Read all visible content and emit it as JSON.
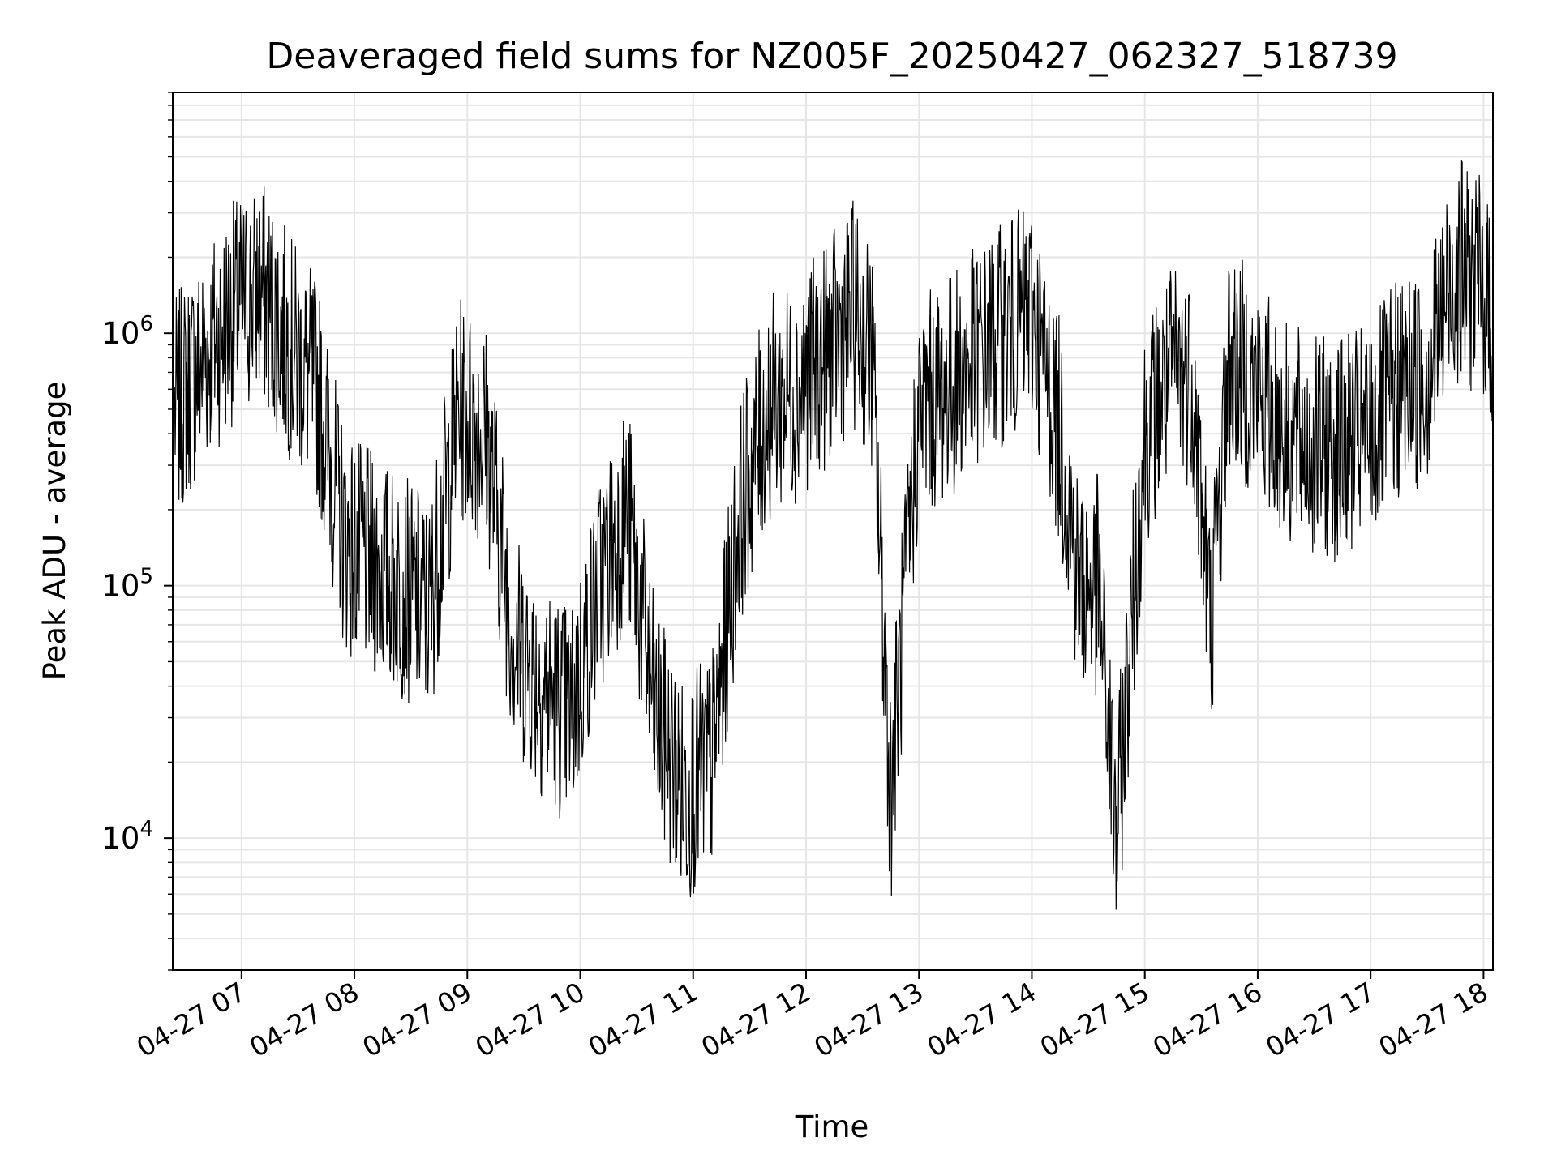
{
  "chart_data": {
    "type": "line",
    "title": "Deaveraged field sums for NZ005F_20250427_062327_518739",
    "xlabel": "Time",
    "ylabel": "Peak ADU - average",
    "x_axis": {
      "type": "time",
      "range": [
        "04-27 06:23:27",
        "04-27 18:05"
      ],
      "ticks": [
        "04-27 07",
        "04-27 08",
        "04-27 09",
        "04-27 10",
        "04-27 11",
        "04-27 12",
        "04-27 13",
        "04-27 14",
        "04-27 15",
        "04-27 16",
        "04-27 17",
        "04-27 18"
      ],
      "tick_times": [
        "07:00",
        "08:00",
        "09:00",
        "10:00",
        "11:00",
        "12:00",
        "13:00",
        "14:00",
        "15:00",
        "16:00",
        "17:00",
        "18:00"
      ]
    },
    "y_axis": {
      "scale": "log",
      "range": [
        3000,
        9000000
      ],
      "ticks": [
        10000,
        100000,
        1000000
      ],
      "tick_labels": [
        {
          "base": "10",
          "exp": "4"
        },
        {
          "base": "10",
          "exp": "5"
        },
        {
          "base": "10",
          "exp": "6"
        }
      ]
    },
    "grid": true,
    "series": [
      {
        "color": "#000000",
        "x": [
          "06:25",
          "06:40",
          "06:55",
          "07:10",
          "07:25",
          "07:40",
          "07:55",
          "08:10",
          "08:25",
          "08:40",
          "08:55",
          "09:10",
          "09:25",
          "09:40",
          "09:55",
          "10:10",
          "10:25",
          "10:40",
          "10:55",
          "11:10",
          "11:25",
          "11:40",
          "11:55",
          "12:10",
          "12:25",
          "12:35",
          "12:45",
          "13:00",
          "13:15",
          "13:30",
          "13:45",
          "14:00",
          "14:15",
          "14:25",
          "14:35",
          "14:45",
          "15:00",
          "15:15",
          "15:25",
          "15:35",
          "15:45",
          "16:00",
          "16:15",
          "16:30",
          "16:45",
          "17:00",
          "17:15",
          "17:30",
          "17:45",
          "18:00",
          "18:05"
        ],
        "y": [
          500000,
          800000,
          1200000,
          1500000,
          900000,
          600000,
          150000,
          120000,
          100000,
          80000,
          500000,
          400000,
          60000,
          40000,
          30000,
          100000,
          200000,
          30000,
          15000,
          20000,
          200000,
          500000,
          600000,
          800000,
          1200000,
          800000,
          15000,
          500000,
          600000,
          800000,
          1000000,
          1200000,
          400000,
          100000,
          100000,
          10000,
          400000,
          700000,
          700000,
          70000,
          800000,
          600000,
          400000,
          350000,
          350000,
          400000,
          600000,
          700000,
          1800000,
          1500000,
          1000000
        ]
      }
    ]
  }
}
